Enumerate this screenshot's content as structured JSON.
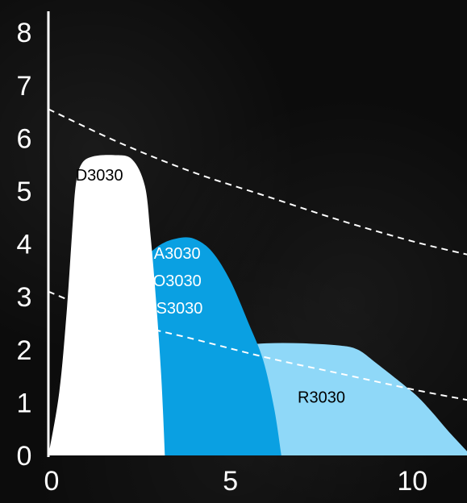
{
  "chart_data": {
    "type": "area",
    "title": "",
    "xlabel": "",
    "ylabel": "",
    "xlim": [
      0,
      11.5
    ],
    "ylim": [
      0,
      8.4
    ],
    "x_ticks": [
      "0",
      "5",
      "10"
    ],
    "y_ticks": [
      "0",
      "1",
      "2",
      "3",
      "4",
      "5",
      "6",
      "7",
      "8"
    ],
    "grid": false,
    "legend": "none",
    "series": [
      {
        "name": "R3030",
        "color": "#8fd8f8",
        "label_lines": [
          "R3030"
        ],
        "label_color": "#000000",
        "label_at": [
          7.5,
          1.0
        ],
        "points": [
          [
            0,
            0
          ],
          [
            1,
            0.55
          ],
          [
            2,
            1.05
          ],
          [
            3,
            1.5
          ],
          [
            4,
            1.85
          ],
          [
            5,
            2.05
          ],
          [
            6,
            2.12
          ],
          [
            7,
            2.12
          ],
          [
            8,
            2.08
          ],
          [
            8.5,
            2.0
          ],
          [
            9,
            1.75
          ],
          [
            10,
            1.2
          ],
          [
            10.5,
            0.85
          ],
          [
            11,
            0.45
          ],
          [
            11.5,
            0.08
          ]
        ]
      },
      {
        "name": "A3030 / O3030 / S3030",
        "color": "#0aa0e2",
        "label_lines": [
          "A3030",
          "O3030",
          "S3030"
        ],
        "label_color": "#ffffff",
        "label_at": [
          3.6,
          3.2
        ],
        "points": [
          [
            0,
            0
          ],
          [
            0.5,
            0.6
          ],
          [
            1,
            1.3
          ],
          [
            1.5,
            2.1
          ],
          [
            2,
            2.95
          ],
          [
            2.5,
            3.6
          ],
          [
            3,
            3.95
          ],
          [
            3.5,
            4.1
          ],
          [
            4,
            4.1
          ],
          [
            4.5,
            3.85
          ],
          [
            5,
            3.3
          ],
          [
            5.5,
            2.5
          ],
          [
            5.9,
            1.8
          ],
          [
            6.2,
            0.9
          ],
          [
            6.4,
            0
          ]
        ]
      },
      {
        "name": "D3030",
        "color": "#ffffff",
        "label_lines": [
          "D3030"
        ],
        "label_color": "#000000",
        "label_at": [
          1.4,
          5.2
        ],
        "points": [
          [
            0,
            0
          ],
          [
            0.3,
            1.2
          ],
          [
            0.5,
            2.7
          ],
          [
            0.65,
            4.2
          ],
          [
            0.75,
            5.1
          ],
          [
            0.9,
            5.5
          ],
          [
            1.2,
            5.65
          ],
          [
            1.8,
            5.68
          ],
          [
            2.3,
            5.6
          ],
          [
            2.65,
            5.1
          ],
          [
            2.8,
            4.2
          ],
          [
            2.95,
            3.0
          ],
          [
            3.1,
            1.5
          ],
          [
            3.2,
            0
          ]
        ]
      }
    ],
    "reference_lines": [
      {
        "style": "dashed",
        "color": "#ffffff",
        "points": [
          [
            0,
            6.55
          ],
          [
            2,
            5.9
          ],
          [
            4,
            5.35
          ],
          [
            6,
            4.9
          ],
          [
            8,
            4.45
          ],
          [
            10,
            4.05
          ],
          [
            11.5,
            3.8
          ]
        ]
      },
      {
        "style": "dashed",
        "color": "#ffffff",
        "points": [
          [
            0,
            3.1
          ],
          [
            2,
            2.55
          ],
          [
            4,
            2.2
          ],
          [
            6,
            1.85
          ],
          [
            8,
            1.55
          ],
          [
            10,
            1.25
          ],
          [
            11.5,
            1.05
          ]
        ]
      }
    ]
  }
}
